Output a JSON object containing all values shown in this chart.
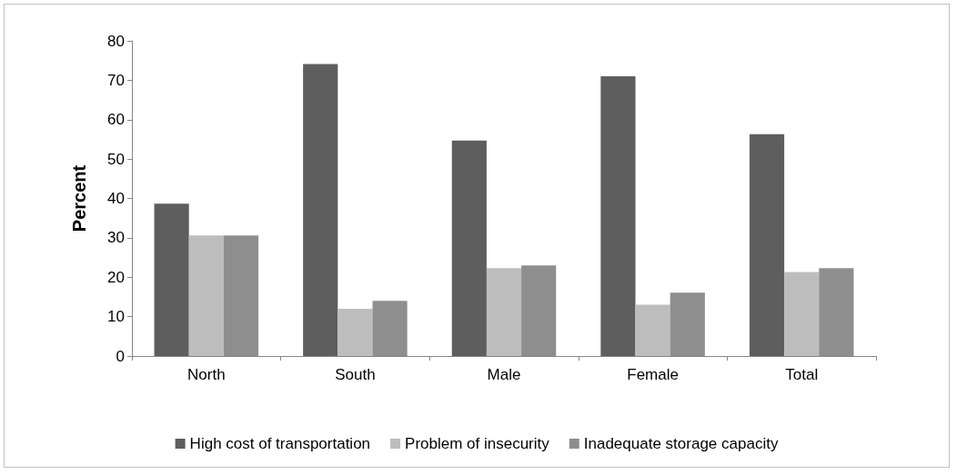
{
  "chart_data": {
    "type": "bar",
    "ylabel": "Percent",
    "categories": [
      "North",
      "South",
      "Male",
      "Female",
      "Total"
    ],
    "series": [
      {
        "name": "High cost of transportation",
        "color": "#5e5e5e",
        "values": [
          38.7,
          74.1,
          54.7,
          71.0,
          56.3
        ]
      },
      {
        "name": "Problem of insecurity",
        "color": "#bdbdbd",
        "values": [
          30.6,
          12.0,
          22.3,
          13.0,
          21.3
        ]
      },
      {
        "name": "Inadequate storage capacity",
        "color": "#8e8e8e",
        "values": [
          30.6,
          14.0,
          23.0,
          16.1,
          22.3
        ]
      }
    ],
    "ylim": [
      0,
      80
    ],
    "yticks": [
      0,
      10,
      20,
      30,
      40,
      50,
      60,
      70,
      80
    ],
    "grid": false,
    "legend": "bottom"
  }
}
